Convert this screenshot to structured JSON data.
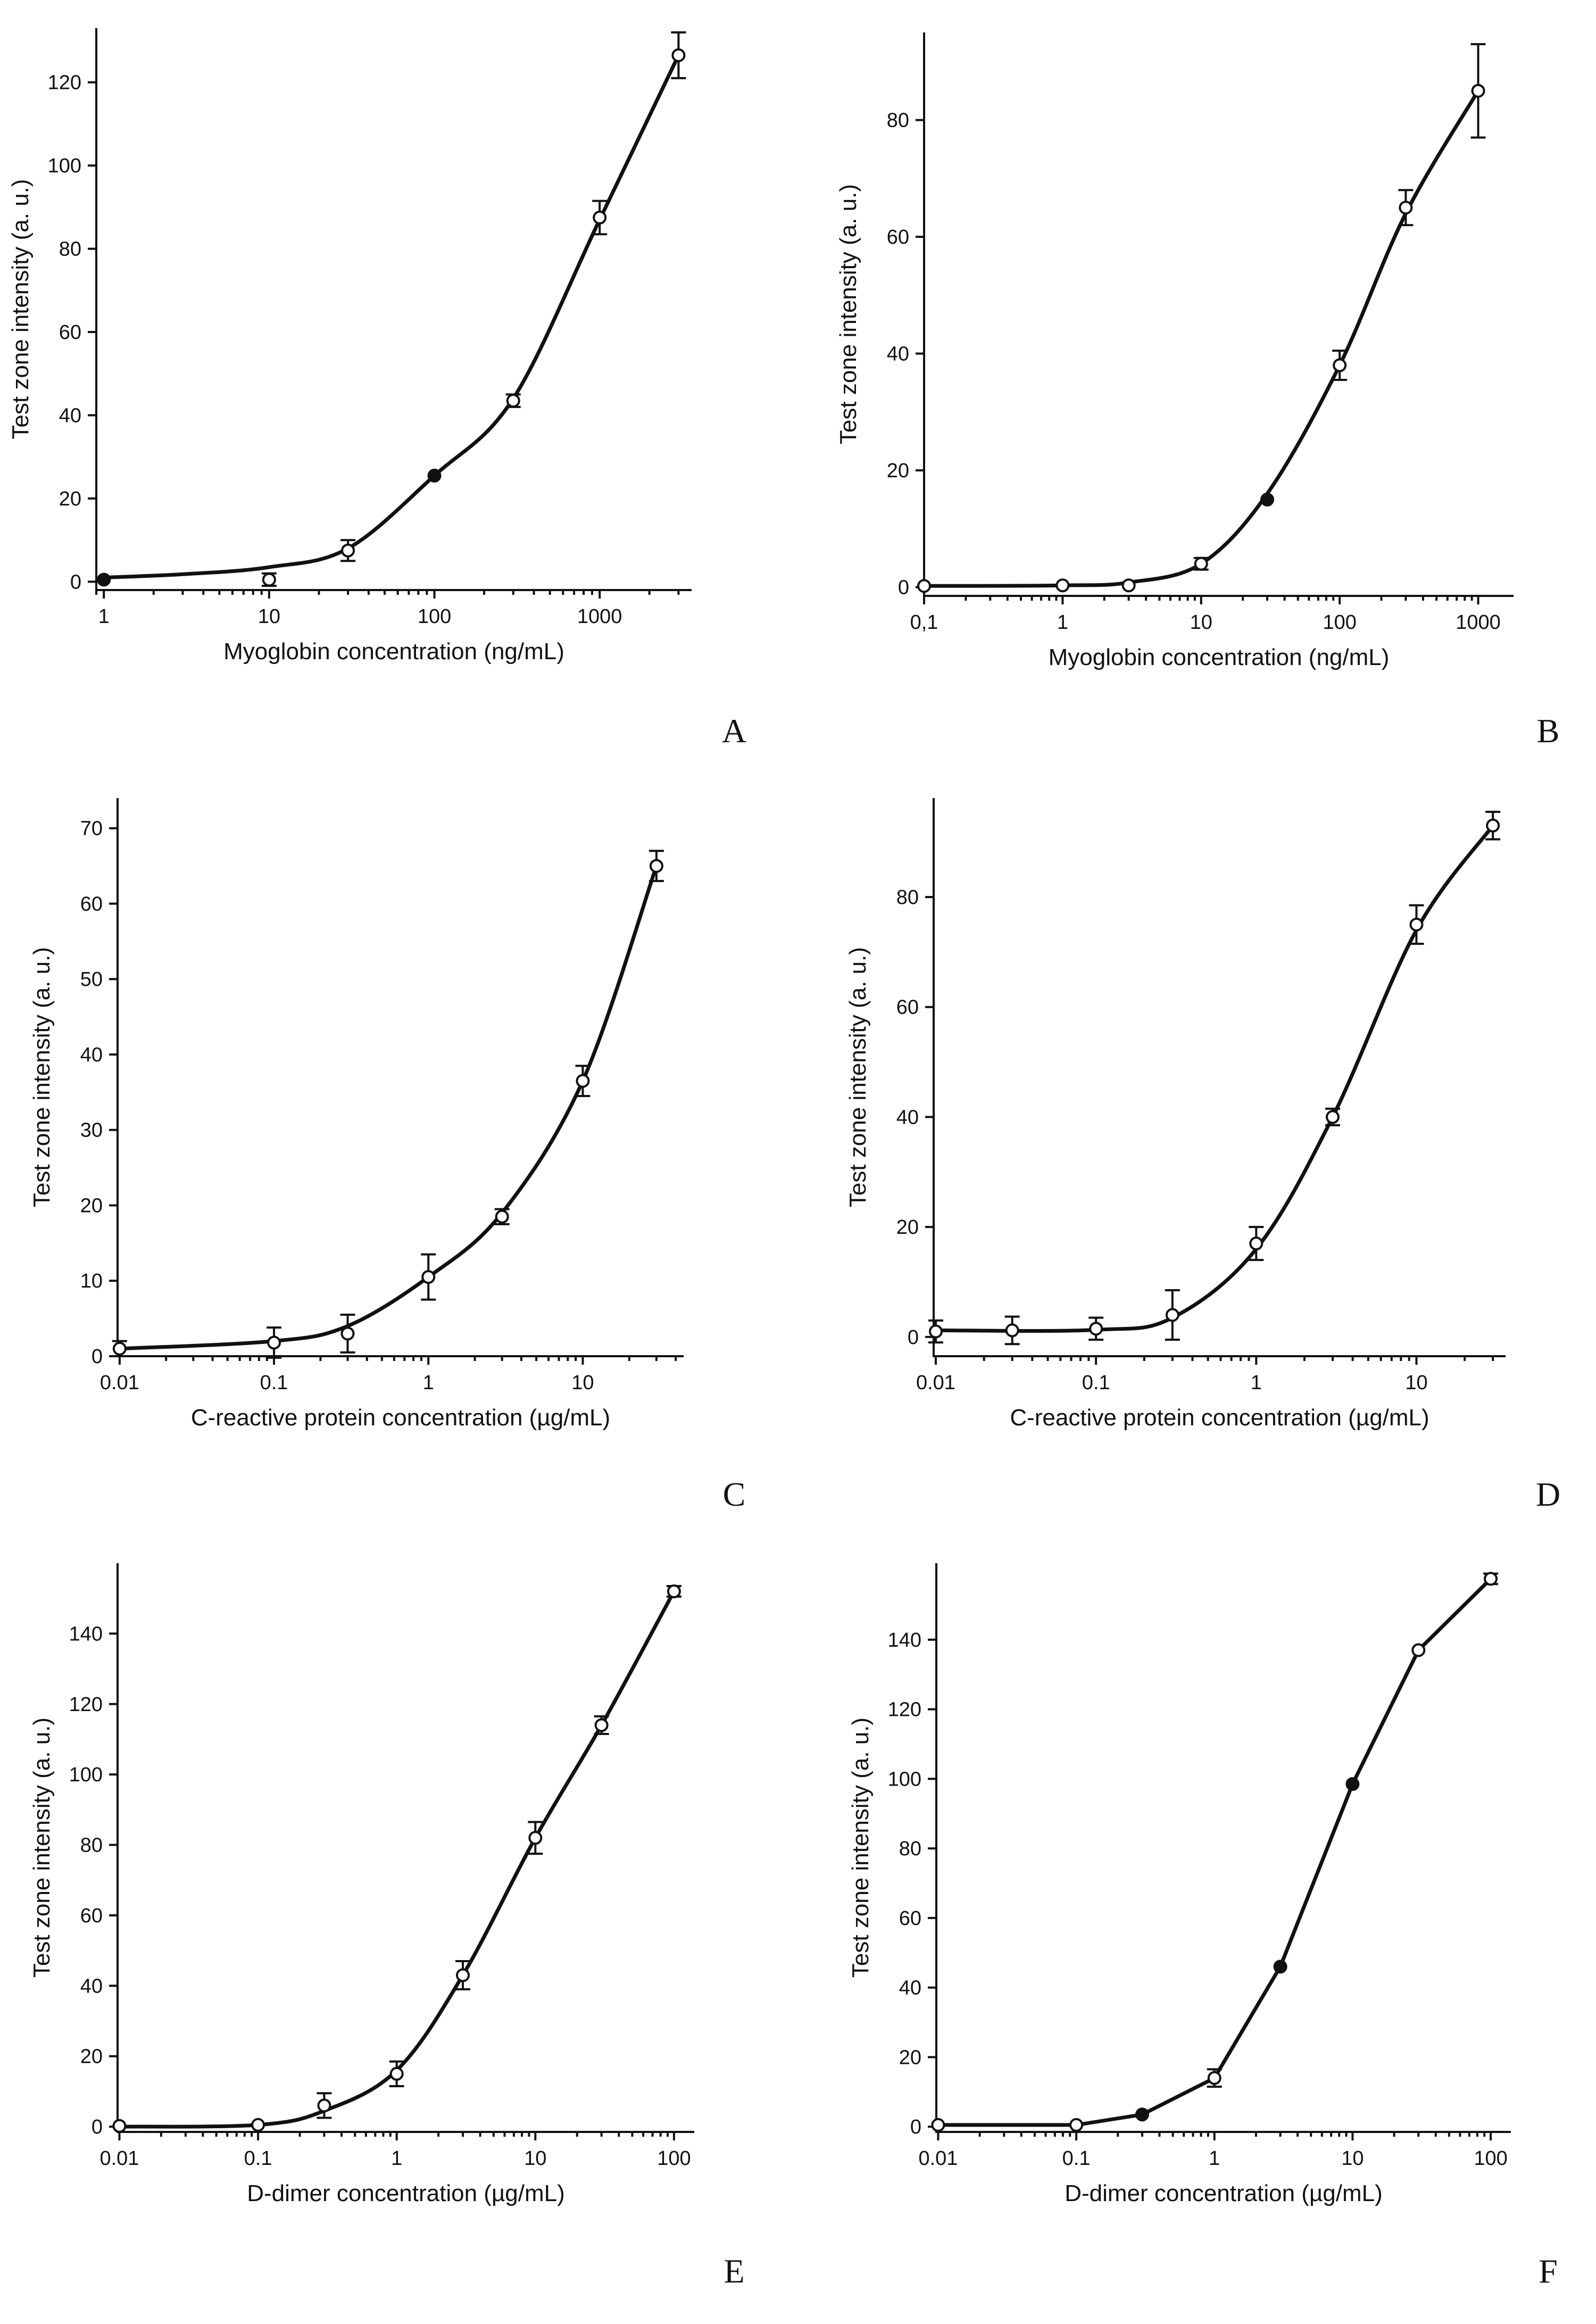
{
  "chart_data": [
    {
      "id": "A",
      "type": "scatter",
      "letter": "A",
      "xscale": "log",
      "fit": "smooth",
      "xlabel": "Myoglobin concentration (ng/mL)",
      "ylabel": "Test zone intensity (a. u.)",
      "xlim": [
        0.9,
        3600
      ],
      "ylim": [
        -2,
        133
      ],
      "xticks": [
        1,
        10,
        100,
        1000
      ],
      "xtick_labels": [
        "1",
        "10",
        "100",
        "1000"
      ],
      "yticks": [
        0,
        20,
        40,
        60,
        80,
        100,
        120
      ],
      "ytick_labels": [
        "0",
        "20",
        "40",
        "60",
        "80",
        "100",
        "120"
      ],
      "x": [
        1,
        10,
        30,
        100,
        300,
        1000,
        3000
      ],
      "y": [
        0.5,
        0.5,
        7.5,
        25.5,
        43.5,
        87.5,
        126.5
      ],
      "err": [
        0.5,
        1.5,
        2.5,
        0.5,
        1.5,
        4,
        5.5
      ],
      "filled": [
        true,
        false,
        false,
        true,
        false,
        false,
        false
      ],
      "curve": [
        [
          1,
          1
        ],
        [
          3,
          1.8
        ],
        [
          10,
          3.5
        ],
        [
          30,
          8
        ],
        [
          100,
          25.5
        ],
        [
          300,
          44
        ],
        [
          1000,
          87
        ],
        [
          3000,
          126.5
        ]
      ]
    },
    {
      "id": "B",
      "type": "scatter",
      "letter": "B",
      "xscale": "log",
      "fit": "smooth",
      "xlabel": "Myoglobin concentration (ng/mL)",
      "ylabel": "Test zone intensity (a. u.)",
      "xlim": [
        0.1,
        1800
      ],
      "ylim": [
        -1.5,
        95
      ],
      "xticks": [
        0.1,
        1,
        10,
        100,
        1000
      ],
      "xtick_labels": [
        "0,1",
        "1",
        "10",
        "100",
        "1000"
      ],
      "yticks": [
        0,
        20,
        40,
        60,
        80
      ],
      "ytick_labels": [
        "0",
        "20",
        "40",
        "60",
        "80"
      ],
      "x": [
        0.1,
        1,
        3,
        10,
        30,
        100,
        300,
        1000
      ],
      "y": [
        0.2,
        0.3,
        0.3,
        4,
        15,
        38,
        65,
        85
      ],
      "err": [
        0.3,
        0.3,
        0.3,
        1,
        0.5,
        2.5,
        3,
        8
      ],
      "filled": [
        false,
        false,
        false,
        false,
        true,
        false,
        false,
        false
      ],
      "curve": [
        [
          0.1,
          0.2
        ],
        [
          1,
          0.3
        ],
        [
          3,
          0.8
        ],
        [
          10,
          4
        ],
        [
          30,
          16
        ],
        [
          100,
          38
        ],
        [
          300,
          64
        ],
        [
          1000,
          85
        ]
      ]
    },
    {
      "id": "C",
      "type": "scatter",
      "letter": "C",
      "xscale": "log",
      "fit": "smooth",
      "xlabel": "C-reactive protein concentration (µg/mL)",
      "ylabel": "Test zone intensity (a. u.)",
      "xlim": [
        0.0097,
        45
      ],
      "ylim": [
        0,
        74
      ],
      "xticks": [
        0.01,
        0.1,
        1,
        10
      ],
      "xtick_labels": [
        "0.01",
        "0.1",
        "1",
        "10"
      ],
      "yticks": [
        0,
        10,
        20,
        30,
        40,
        50,
        60,
        70
      ],
      "ytick_labels": [
        "0",
        "10",
        "20",
        "30",
        "40",
        "50",
        "60",
        "70"
      ],
      "x": [
        0.01,
        0.1,
        0.3,
        1,
        3,
        10,
        30
      ],
      "y": [
        1,
        1.8,
        3,
        10.5,
        18.5,
        36.5,
        65
      ],
      "err": [
        1,
        2,
        2.5,
        3,
        1,
        2,
        2
      ],
      "filled": [
        false,
        false,
        false,
        false,
        false,
        false,
        false
      ],
      "curve": [
        [
          0.01,
          1
        ],
        [
          0.1,
          2
        ],
        [
          0.3,
          4
        ],
        [
          1,
          10.5
        ],
        [
          3,
          19
        ],
        [
          10,
          36.5
        ],
        [
          30,
          65
        ]
      ]
    },
    {
      "id": "D",
      "type": "scatter",
      "letter": "D",
      "xscale": "log",
      "fit": "smooth",
      "xlabel": "C-reactive protein concentration (µg/mL)",
      "ylabel": "Test zone intensity (a. u.)",
      "xlim": [
        0.0097,
        36
      ],
      "ylim": [
        -3.5,
        98
      ],
      "xticks": [
        0.01,
        0.1,
        1,
        10
      ],
      "xtick_labels": [
        "0.01",
        "0.1",
        "1",
        "10"
      ],
      "yticks": [
        0,
        20,
        40,
        60,
        80
      ],
      "ytick_labels": [
        "0",
        "20",
        "40",
        "60",
        "80"
      ],
      "x": [
        0.01,
        0.03,
        0.1,
        0.3,
        1,
        3,
        10,
        30
      ],
      "y": [
        1,
        1.2,
        1.5,
        4,
        17,
        40,
        75,
        93
      ],
      "err": [
        2,
        2.5,
        2,
        4.5,
        3,
        1.5,
        3.5,
        2.5
      ],
      "filled": [
        false,
        false,
        false,
        false,
        false,
        false,
        false,
        false
      ],
      "curve": [
        [
          0.01,
          1.2
        ],
        [
          0.1,
          1.3
        ],
        [
          0.3,
          3.5
        ],
        [
          1,
          16
        ],
        [
          3,
          40
        ],
        [
          10,
          74
        ],
        [
          30,
          93
        ]
      ]
    },
    {
      "id": "E",
      "type": "scatter",
      "letter": "E",
      "xscale": "log",
      "fit": "smooth",
      "xlabel": "D-dimer concentration (µg/mL)",
      "ylabel": "Test zone intensity (a. u.)",
      "xlim": [
        0.0097,
        140
      ],
      "ylim": [
        -1.5,
        160
      ],
      "xticks": [
        0.01,
        0.1,
        1,
        10,
        100
      ],
      "xtick_labels": [
        "0.01",
        "0.1",
        "1",
        "10",
        "100"
      ],
      "yticks": [
        0,
        20,
        40,
        60,
        80,
        100,
        120,
        140
      ],
      "ytick_labels": [
        "0",
        "20",
        "40",
        "60",
        "80",
        "100",
        "120",
        "140"
      ],
      "x": [
        0.01,
        0.1,
        0.3,
        1,
        3,
        10,
        30,
        100
      ],
      "y": [
        0.2,
        0.5,
        6,
        15,
        43,
        82,
        114,
        152
      ],
      "err": [
        0.5,
        0.5,
        3.5,
        3.5,
        4,
        4.5,
        2.5,
        1.5
      ],
      "filled": [
        false,
        false,
        false,
        false,
        false,
        false,
        false,
        false
      ],
      "curve": [
        [
          0.01,
          0
        ],
        [
          0.1,
          0.5
        ],
        [
          0.3,
          4.5
        ],
        [
          1,
          16
        ],
        [
          3,
          43
        ],
        [
          10,
          82
        ],
        [
          30,
          114
        ],
        [
          100,
          152
        ]
      ]
    },
    {
      "id": "F",
      "type": "line",
      "letter": "F",
      "xscale": "log",
      "fit": "polyline",
      "xlabel": "D-dimer concentration (µg/mL)",
      "ylabel": "Test zone intensity (a. u.)",
      "xlim": [
        0.0097,
        140
      ],
      "ylim": [
        -1.5,
        162
      ],
      "xticks": [
        0.01,
        0.1,
        1,
        10,
        100
      ],
      "xtick_labels": [
        "0.01",
        "0.1",
        "1",
        "10",
        "100"
      ],
      "yticks": [
        0,
        20,
        40,
        60,
        80,
        100,
        120,
        140
      ],
      "ytick_labels": [
        "0",
        "20",
        "40",
        "60",
        "80",
        "100",
        "120",
        "140"
      ],
      "x": [
        0.01,
        0.1,
        0.3,
        1,
        3,
        10,
        30,
        100
      ],
      "y": [
        0.5,
        0.5,
        3.5,
        14,
        46,
        98.5,
        137,
        157.5
      ],
      "err": [
        0.5,
        0.5,
        0.5,
        2.5,
        0.5,
        0.5,
        0.5,
        1.5
      ],
      "filled": [
        false,
        false,
        true,
        false,
        true,
        true,
        false,
        false
      ],
      "curve": []
    }
  ]
}
